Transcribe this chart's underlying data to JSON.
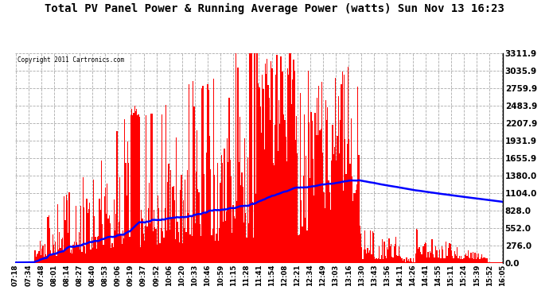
{
  "title": "Total PV Panel Power & Running Average Power (watts) Sun Nov 13 16:23",
  "copyright": "Copyright 2011 Cartronics.com",
  "background_color": "#ffffff",
  "plot_bg_color": "#ffffff",
  "yticks": [
    0.0,
    276.0,
    552.0,
    828.0,
    1104.0,
    1380.0,
    1655.9,
    1931.9,
    2207.9,
    2483.9,
    2759.9,
    3035.9,
    3311.9
  ],
  "ymax": 3311.9,
  "bar_color": "#ff0000",
  "avg_color": "#0000ff",
  "grid_color": "#aaaaaa",
  "xtick_labels": [
    "07:18",
    "07:34",
    "07:48",
    "08:01",
    "08:14",
    "08:27",
    "08:40",
    "08:53",
    "09:06",
    "09:19",
    "09:37",
    "09:52",
    "10:06",
    "10:20",
    "10:33",
    "10:46",
    "10:59",
    "11:15",
    "11:28",
    "11:41",
    "11:54",
    "12:08",
    "12:21",
    "12:34",
    "12:49",
    "13:03",
    "13:16",
    "13:30",
    "13:43",
    "13:56",
    "14:11",
    "14:26",
    "14:41",
    "14:55",
    "15:11",
    "15:24",
    "15:39",
    "15:52",
    "16:05"
  ],
  "n_points": 500
}
